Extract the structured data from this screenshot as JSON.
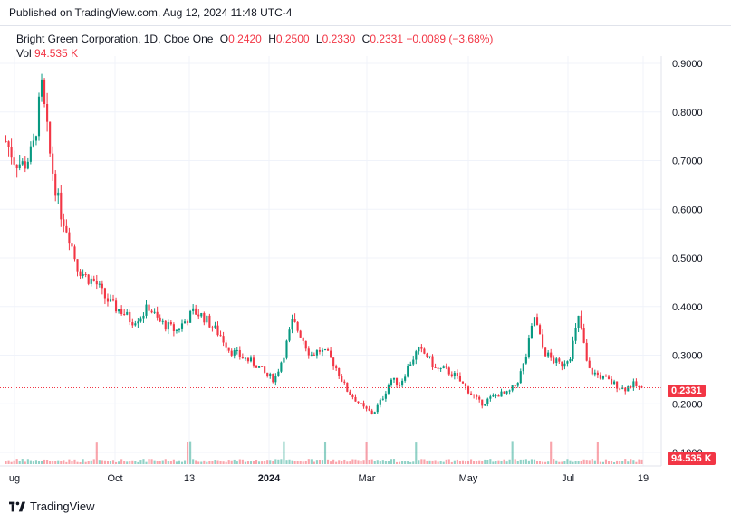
{
  "published": "Published on TradingView.com, Aug 12, 2024 11:48 UTC-4",
  "legend": {
    "symbol": "Bright Green Corporation, 1D, Cboe One",
    "open_k": "O",
    "open_v": "0.2420",
    "high_k": "H",
    "high_v": "0.2500",
    "low_k": "L",
    "low_v": "0.2330",
    "close_k": "C",
    "close_v": "0.2331",
    "change": "−0.0089 (−3.68%)",
    "vol_k": "Vol",
    "vol_v": "94.535 K"
  },
  "badges": {
    "price": "0.2331",
    "volume": "94.535 K"
  },
  "brand": "TradingView",
  "colors": {
    "up": "#089981",
    "down": "#f23645",
    "grid": "#f0f3fa"
  },
  "chart_data": {
    "type": "candlestick",
    "y_ticks": [
      "0.9000",
      "0.8000",
      "0.7000",
      "0.6000",
      "0.5000",
      "0.4000",
      "0.3000",
      "0.2000",
      "0.1000"
    ],
    "x_ticks": [
      "ug",
      "Oct",
      "13",
      "2024",
      "Mar",
      "May",
      "Jul",
      "19"
    ],
    "ylim": [
      0.1,
      0.95
    ],
    "last_price": 0.2331,
    "series": [
      {
        "name": "price",
        "values": [
          0.74,
          0.7,
          0.69,
          0.72,
          0.85,
          0.7,
          0.6,
          0.55,
          0.48,
          0.46,
          0.45,
          0.42,
          0.4,
          0.39,
          0.37,
          0.38,
          0.4,
          0.37,
          0.36,
          0.35,
          0.37,
          0.39,
          0.38,
          0.36,
          0.34,
          0.31,
          0.3,
          0.29,
          0.28,
          0.26,
          0.25,
          0.3,
          0.37,
          0.34,
          0.3,
          0.31,
          0.3,
          0.27,
          0.23,
          0.21,
          0.19,
          0.18,
          0.21,
          0.25,
          0.24,
          0.28,
          0.31,
          0.3,
          0.27,
          0.27,
          0.26,
          0.24,
          0.22,
          0.2,
          0.21,
          0.22,
          0.22,
          0.24,
          0.29,
          0.38,
          0.31,
          0.29,
          0.28,
          0.3,
          0.38,
          0.27,
          0.26,
          0.25,
          0.24,
          0.23,
          0.24,
          0.23
        ]
      }
    ]
  }
}
